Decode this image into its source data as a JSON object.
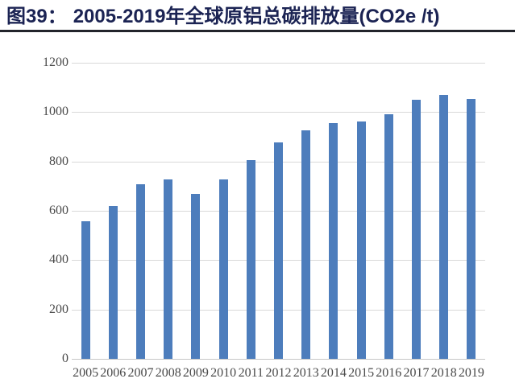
{
  "header": {
    "figure_label": "图39：",
    "title": "2005-2019年全球原铝总碳排放量(CO2e /t)"
  },
  "colors": {
    "bar": "#4d7dbc",
    "title_text": "#1b2353",
    "header_rule": "#22242b",
    "gridline": "#d9d9d9",
    "axis_line": "#c6c6c6",
    "tick_text": "#4a4a4a",
    "background": "#ffffff"
  },
  "chart_data": {
    "type": "bar",
    "title": "2005-2019年全球原铝总碳排放量(CO2e /t)",
    "figure_number": "图39",
    "categories": [
      "2005",
      "2006",
      "2007",
      "2008",
      "2009",
      "2010",
      "2011",
      "2012",
      "2013",
      "2014",
      "2015",
      "2016",
      "2017",
      "2018",
      "2019"
    ],
    "values": [
      556,
      618,
      707,
      726,
      670,
      726,
      804,
      877,
      926,
      957,
      961,
      991,
      1051,
      1068,
      1052
    ],
    "xlabel": "",
    "ylabel": "",
    "ylim": [
      0,
      1200
    ],
    "y_ticks": [
      0,
      200,
      400,
      600,
      800,
      1000,
      1200
    ],
    "grid": "horizontal",
    "legend": "none",
    "bar_color": "#4d7dbc"
  }
}
